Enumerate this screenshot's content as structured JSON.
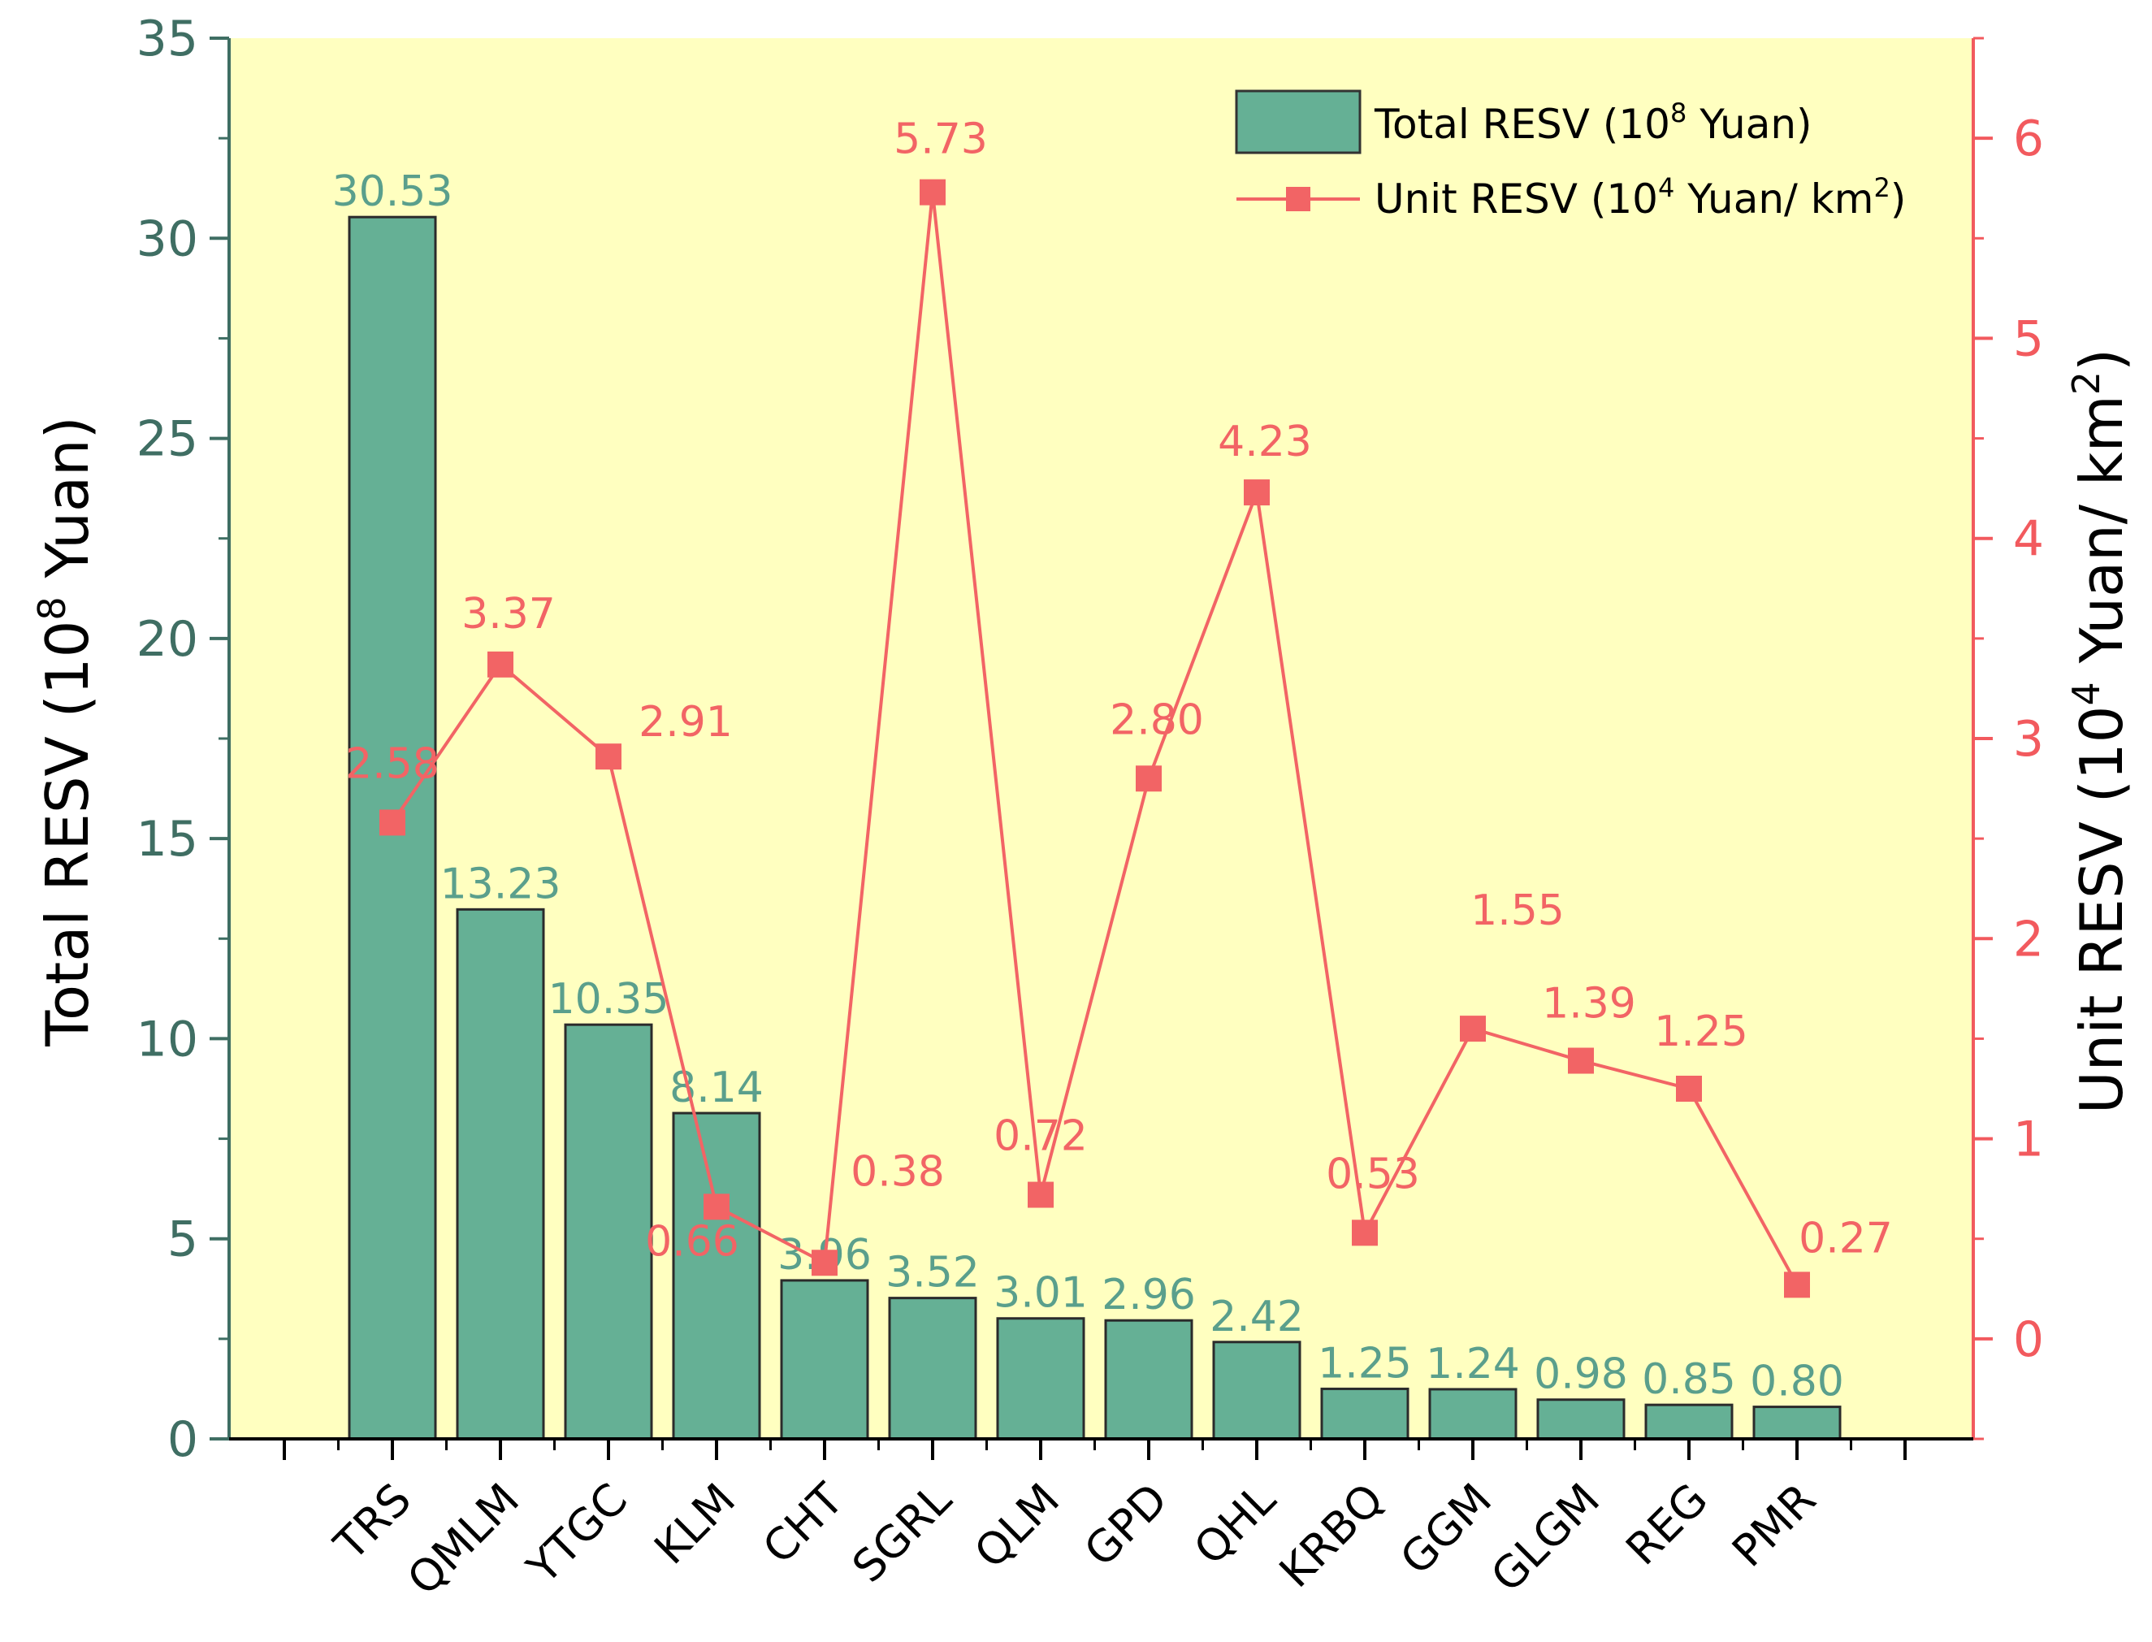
{
  "chart_data": {
    "type": "bar+line",
    "categories": [
      "TRS",
      "QMLM",
      "YTGC",
      "KLM",
      "CHT",
      "SGRL",
      "QLM",
      "GPD",
      "QHL",
      "KRBQ",
      "GGM",
      "GLGM",
      "REG",
      "PMR"
    ],
    "series": [
      {
        "name": "Total RESV (10",
        "name_sup": "8",
        "name_tail": " Yuan)",
        "type": "bar",
        "axis": "left",
        "values": [
          30.53,
          13.23,
          10.35,
          8.14,
          3.96,
          3.52,
          3.01,
          2.96,
          2.42,
          1.25,
          1.24,
          0.98,
          0.85,
          0.8
        ],
        "labels": [
          "30.53",
          "13.23",
          "10.35",
          "8.14",
          "3.96",
          "3.52",
          "3.01",
          "2.96",
          "2.42",
          "1.25",
          "1.24",
          "0.98",
          "0.85",
          "0.80"
        ],
        "fill_color": "#65b095",
        "label_color": "#5a9f8c"
      },
      {
        "name": "Unit RESV (10",
        "name_sup": "4",
        "name_tail": " Yuan/ km",
        "name_sup2": "2",
        "name_end": ")",
        "type": "line",
        "axis": "right",
        "values": [
          2.58,
          3.37,
          2.91,
          0.66,
          0.38,
          5.73,
          0.72,
          2.8,
          4.23,
          0.53,
          1.55,
          1.39,
          1.25,
          0.27
        ],
        "labels": [
          "2.58",
          "3.37",
          "2.91",
          "0.66",
          "0.38",
          "5.73",
          "0.72",
          "2.80",
          "4.23",
          "0.53",
          "1.55",
          "1.39",
          "1.25",
          "0.27"
        ],
        "color": "#f26465"
      }
    ],
    "y_left": {
      "label": "Total RESV (10",
      "label_sup": "8",
      "label_tail": " Yuan)",
      "lim": [
        0,
        35
      ],
      "ticks": [
        "0",
        "5",
        "10",
        "15",
        "20",
        "25",
        "30",
        "35"
      ],
      "tick_values": [
        0,
        5,
        10,
        15,
        20,
        25,
        30,
        35
      ],
      "color": "#3f6e63"
    },
    "y_right": {
      "label": "Unit RESV (10",
      "label_sup": "4",
      "label_tail": " Yuan/ km",
      "label_sup2": "2",
      "label_end": ")",
      "lim": [
        -0.5,
        6.5
      ],
      "ticks": [
        "0",
        "1",
        "2",
        "3",
        "4",
        "5",
        "6"
      ],
      "tick_values": [
        0,
        1,
        2,
        3,
        4,
        5,
        6
      ],
      "color": "#f25a5e"
    },
    "background": "#ffffc0",
    "legend_position": "top-right"
  }
}
